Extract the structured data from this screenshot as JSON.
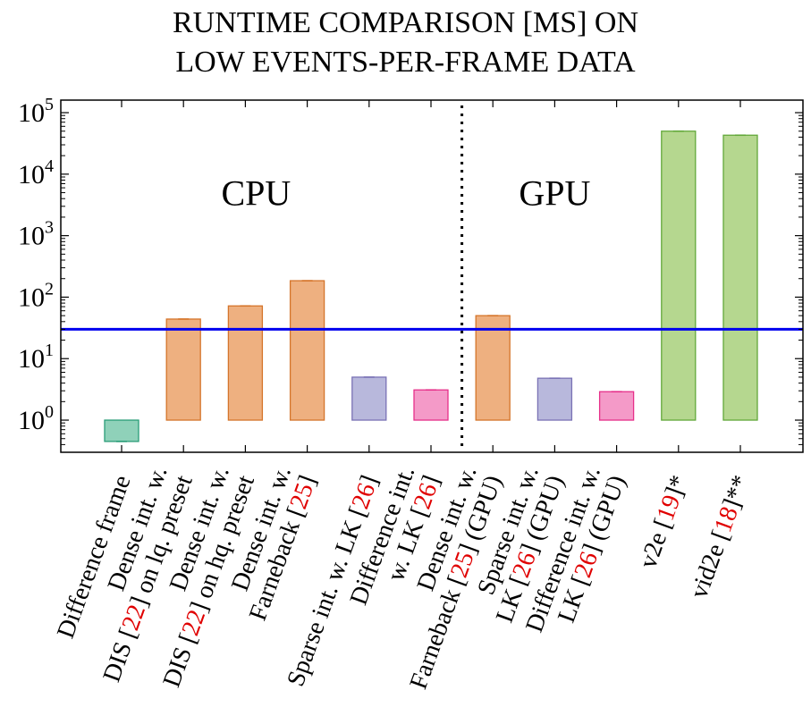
{
  "chart_data": {
    "type": "bar",
    "title_lines": [
      "RUNTIME COMPARISON [MS] ON",
      "LOW EVENTS-PER-FRAME DATA"
    ],
    "xlabel": "",
    "ylabel": "",
    "yscale": "log",
    "ylim": [
      0.3,
      160000
    ],
    "bar_base": 1,
    "grid": false,
    "y_ticks": [
      {
        "base": "10",
        "exp": "0",
        "value": 1
      },
      {
        "base": "10",
        "exp": "1",
        "value": 10
      },
      {
        "base": "10",
        "exp": "2",
        "value": 100
      },
      {
        "base": "10",
        "exp": "3",
        "value": 1000
      },
      {
        "base": "10",
        "exp": "4",
        "value": 10000
      },
      {
        "base": "10",
        "exp": "5",
        "value": 100000
      }
    ],
    "reference_line": {
      "value": 30,
      "color": "#0000ee"
    },
    "regions": [
      {
        "label": "CPU",
        "label_value": 5000
      },
      {
        "label": "GPU",
        "label_value": 5000
      }
    ],
    "categories": [
      {
        "lines": [
          [
            {
              "t": "Difference frame"
            }
          ]
        ],
        "value": 0.45,
        "color": "#8fd1b9",
        "stroke": "#2a9d78"
      },
      {
        "lines": [
          [
            {
              "t": "Dense int. w."
            }
          ],
          [
            {
              "t": "DIS ["
            },
            {
              "t": "22",
              "ref": true
            },
            {
              "t": "] on lq. preset"
            }
          ]
        ],
        "value": 44,
        "color": "#eeb080",
        "stroke": "#d5752b"
      },
      {
        "lines": [
          [
            {
              "t": "Dense int. w."
            }
          ],
          [
            {
              "t": "DIS ["
            },
            {
              "t": "22",
              "ref": true
            },
            {
              "t": "] on hq. preset"
            }
          ]
        ],
        "value": 72,
        "color": "#eeb080",
        "stroke": "#d5752b"
      },
      {
        "lines": [
          [
            {
              "t": "Dense int. w."
            }
          ],
          [
            {
              "t": "Farneback ["
            },
            {
              "t": "25",
              "ref": true
            },
            {
              "t": "]"
            }
          ]
        ],
        "value": 185,
        "color": "#eeb080",
        "stroke": "#d5752b"
      },
      {
        "lines": [
          [
            {
              "t": "Sparse int. w. LK ["
            },
            {
              "t": "26",
              "ref": true
            },
            {
              "t": "]"
            }
          ]
        ],
        "value": 5,
        "color": "#b8b8dc",
        "stroke": "#7a72b5"
      },
      {
        "lines": [
          [
            {
              "t": "Difference int."
            }
          ],
          [
            {
              "t": "w. LK ["
            },
            {
              "t": "26",
              "ref": true
            },
            {
              "t": "]"
            }
          ]
        ],
        "value": 3.1,
        "color": "#f49ac8",
        "stroke": "#e6308a"
      },
      {
        "lines": [
          [
            {
              "t": "Dense int. w."
            }
          ],
          [
            {
              "t": "Farneback ["
            },
            {
              "t": "25",
              "ref": true
            },
            {
              "t": "] (GPU)"
            }
          ]
        ],
        "value": 50,
        "color": "#eeb080",
        "stroke": "#d5752b"
      },
      {
        "lines": [
          [
            {
              "t": "Sparse int. w."
            }
          ],
          [
            {
              "t": "LK ["
            },
            {
              "t": "26",
              "ref": true
            },
            {
              "t": "] (GPU)"
            }
          ]
        ],
        "value": 4.8,
        "color": "#b8b8dc",
        "stroke": "#7a72b5"
      },
      {
        "lines": [
          [
            {
              "t": "Difference int. w."
            }
          ],
          [
            {
              "t": "LK ["
            },
            {
              "t": "26",
              "ref": true
            },
            {
              "t": "] (GPU)"
            }
          ]
        ],
        "value": 2.9,
        "color": "#f49ac8",
        "stroke": "#e6308a"
      },
      {
        "lines": [
          [
            {
              "t": "v2e ["
            },
            {
              "t": "19",
              "ref": true
            },
            {
              "t": "]*"
            }
          ]
        ],
        "value": 50000,
        "color": "#b5d78f",
        "stroke": "#62a83a"
      },
      {
        "lines": [
          [
            {
              "t": "vid2e ["
            },
            {
              "t": "18",
              "ref": true
            },
            {
              "t": "]**"
            }
          ]
        ],
        "value": 43000,
        "color": "#b5d78f",
        "stroke": "#62a83a"
      }
    ]
  }
}
